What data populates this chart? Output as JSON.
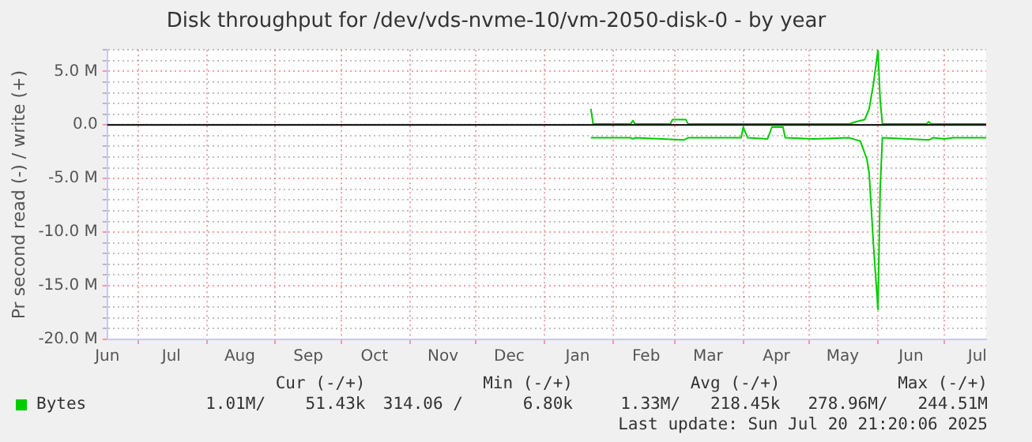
{
  "chart_data": {
    "type": "line",
    "title": "Disk throughput for /dev/vds-nvme-10/vm-2050-disk-0 - by year",
    "ylabel": "Pr second read (-) / write (+)",
    "series": [
      {
        "name": "Bytes",
        "color": "#00cc00",
        "x": [
          "2025-01-22",
          "2025-01-23",
          "2025-02-09",
          "2025-02-10",
          "2025-02-11",
          "2025-02-27",
          "2025-02-28",
          "2025-03-06",
          "2025-03-07",
          "2025-05-19",
          "2025-05-22",
          "2025-05-26",
          "2025-05-28",
          "2025-05-30",
          "2025-06-01",
          "2025-06-02",
          "2025-06-03",
          "2025-06-23",
          "2025-06-24",
          "2025-06-25",
          "2025-07-20"
        ],
        "values": [
          1.5,
          0.1,
          0.1,
          0.4,
          0.1,
          0.1,
          0.5,
          0.5,
          0.1,
          0.1,
          0.3,
          0.5,
          1.5,
          3.9,
          7,
          2.3,
          0.1,
          0.1,
          0.3,
          0.1,
          0.1
        ]
      },
      {
        "color": "#00cc00",
        "x": [
          "2025-01-22",
          "2025-02-09",
          "2025-02-10",
          "2025-02-11",
          "2025-02-23",
          "2025-03-05",
          "2025-03-07",
          "2025-03-31",
          "2025-04-01",
          "2025-04-03",
          "2025-04-12",
          "2025-04-14",
          "2025-04-19",
          "2025-04-20",
          "2025-05-03",
          "2025-05-19",
          "2025-05-24",
          "2025-05-27",
          "2025-05-28",
          "2025-05-30",
          "2025-06-01",
          "2025-06-02",
          "2025-06-03",
          "2025-06-24",
          "2025-06-26",
          "2025-07-01",
          "2025-07-05",
          "2025-07-20"
        ],
        "values": [
          -1.2,
          -1.2,
          -1.3,
          -1.2,
          -1.3,
          -1.4,
          -1.2,
          -1.2,
          -0.2,
          -1.2,
          -1.3,
          -0.2,
          -0.2,
          -1.2,
          -1.3,
          -1.2,
          -1.5,
          -3.2,
          -4.5,
          -11.3,
          -17.2,
          -6.0,
          -1.2,
          -1.4,
          -1.2,
          -1.3,
          -1.2,
          -1.2
        ]
      }
    ],
    "xlim": [
      "2024-06-17",
      "2025-07-20"
    ],
    "xticks": [
      {
        "value": "2024-06-17",
        "label": "Jun"
      },
      {
        "value": "2024-07-01",
        "label": null
      },
      {
        "value": "2024-07-16",
        "label": "Jul"
      },
      {
        "value": "2024-08-01",
        "label": null
      },
      {
        "value": "2024-08-16",
        "label": "Aug"
      },
      {
        "value": "2024-09-01",
        "label": null
      },
      {
        "value": "2024-09-16",
        "label": "Sep"
      },
      {
        "value": "2024-10-01",
        "label": null
      },
      {
        "value": "2024-10-16",
        "label": "Oct"
      },
      {
        "value": "2024-11-01",
        "label": null
      },
      {
        "value": "2024-11-16",
        "label": "Nov"
      },
      {
        "value": "2024-12-01",
        "label": null
      },
      {
        "value": "2024-12-16",
        "label": "Dec"
      },
      {
        "value": "2025-01-01",
        "label": null
      },
      {
        "value": "2025-01-16",
        "label": "Jan"
      },
      {
        "value": "2025-02-01",
        "label": null
      },
      {
        "value": "2025-02-16",
        "label": "Feb"
      },
      {
        "value": "2025-03-01",
        "label": null
      },
      {
        "value": "2025-03-16",
        "label": "Mar"
      },
      {
        "value": "2025-04-01",
        "label": null
      },
      {
        "value": "2025-04-16",
        "label": "Apr"
      },
      {
        "value": "2025-05-01",
        "label": null
      },
      {
        "value": "2025-05-16",
        "label": "May"
      },
      {
        "value": "2025-06-01",
        "label": null
      },
      {
        "value": "2025-06-16",
        "label": "Jun"
      },
      {
        "value": "2025-07-01",
        "label": null
      },
      {
        "value": "2025-07-16",
        "label": "Jul"
      }
    ],
    "ylim": [
      -20,
      7
    ],
    "yticks": [
      {
        "value": -20,
        "label": "-20.0 M"
      },
      {
        "value": -19,
        "label": null
      },
      {
        "value": -18,
        "label": null
      },
      {
        "value": -17,
        "label": null
      },
      {
        "value": -16,
        "label": null
      },
      {
        "value": -15,
        "label": "-15.0 M"
      },
      {
        "value": -14,
        "label": null
      },
      {
        "value": -13,
        "label": null
      },
      {
        "value": -12,
        "label": null
      },
      {
        "value": -11,
        "label": null
      },
      {
        "value": -10,
        "label": "-10.0 M"
      },
      {
        "value": -9,
        "label": null
      },
      {
        "value": -8,
        "label": null
      },
      {
        "value": -7,
        "label": null
      },
      {
        "value": -6,
        "label": null
      },
      {
        "value": -5,
        "label": "-5.0 M"
      },
      {
        "value": -4,
        "label": null
      },
      {
        "value": -3,
        "label": null
      },
      {
        "value": -2,
        "label": null
      },
      {
        "value": -1,
        "label": null
      },
      {
        "value": 0,
        "label": "0.0"
      },
      {
        "value": 1,
        "label": null
      },
      {
        "value": 2,
        "label": null
      },
      {
        "value": 3,
        "label": null
      },
      {
        "value": 4,
        "label": null
      },
      {
        "value": 5,
        "label": "5.0 M"
      },
      {
        "value": 6,
        "label": null
      },
      {
        "value": 7,
        "label": null
      }
    ],
    "ref_lines": [
      {
        "axis": "y",
        "value": 0,
        "color": "#000000"
      }
    ],
    "grid": true,
    "legend": "bottom left",
    "marker": "none",
    "line_style": "solid",
    "annotations": [
      "Cur (-/+)",
      "Min (-/+)",
      "Avg (-/+)",
      "Max (-/+)",
      "1.01M/    51.43k",
      "314.06 /      6.80k",
      "1.33M/   218.45k",
      "278.96M/   244.51M",
      "Last update: Sun Jul 20 21:20:06 2025"
    ]
  }
}
